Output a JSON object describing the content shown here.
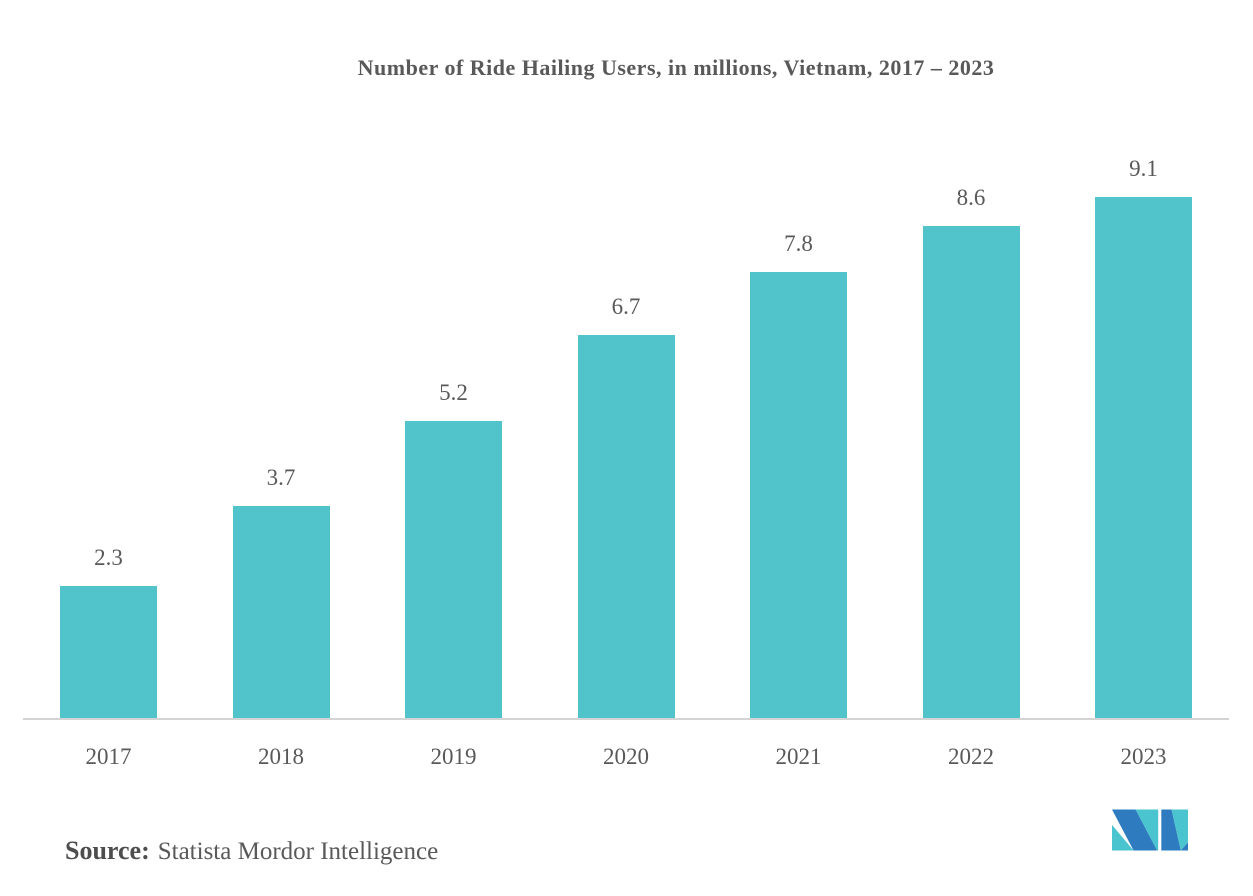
{
  "chart_data": {
    "type": "bar",
    "title": "Number of Ride Hailing Users, in millions, Vietnam, 2017 – 2023",
    "categories": [
      "2017",
      "2018",
      "2019",
      "2020",
      "2021",
      "2022",
      "2023"
    ],
    "values": [
      2.3,
      3.7,
      5.2,
      6.7,
      7.8,
      8.6,
      9.1
    ],
    "xlabel": "",
    "ylabel": "",
    "ylim": [
      0,
      10
    ],
    "grid": false,
    "legend": false,
    "value_labels_shown": true,
    "bar_color": "#50C3CB",
    "label_color": "#595959",
    "axis_line_color": "#D4D4D4",
    "background_color": "#FFFFFF"
  },
  "source": {
    "label": "Source:",
    "text": "Statista Mordor Intelligence"
  },
  "logo": {
    "name": "mordor-intelligence-logo",
    "teal": "#4AC4CE",
    "blue": "#2E7CBF"
  }
}
